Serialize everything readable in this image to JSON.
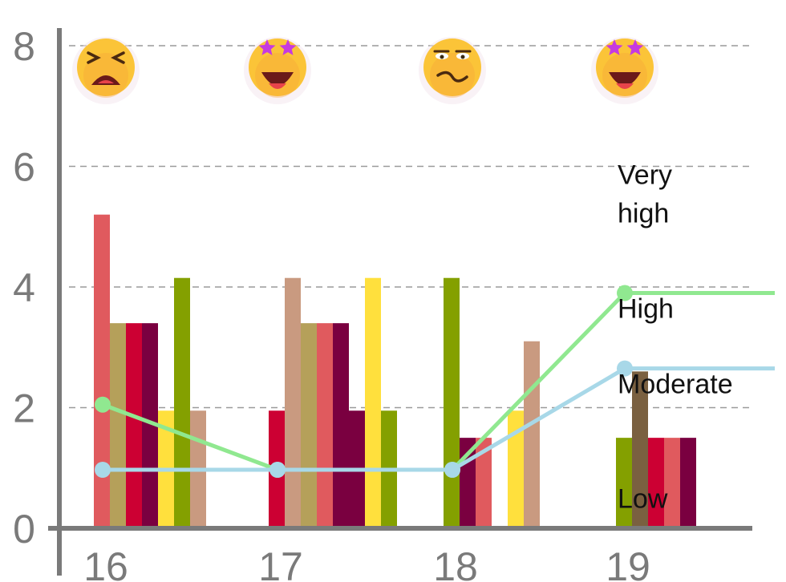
{
  "chart_data": {
    "type": "bar",
    "x_categories": [
      "16",
      "17",
      "18",
      "19"
    ],
    "y_ticks": [
      "0",
      "2",
      "4",
      "6",
      "8"
    ],
    "ylim": [
      0,
      8
    ],
    "grid": "horizontal dashed",
    "bar_groups": [
      {
        "x": "16",
        "bars": [
          {
            "value": 5.2,
            "color": "#e05a5e"
          },
          {
            "value": 3.4,
            "color": "#b5a05a"
          },
          {
            "value": 3.4,
            "color": "#cc0033"
          },
          {
            "value": 3.4,
            "color": "#7a0040"
          },
          {
            "value": 1.95,
            "color": "#ffe03d"
          },
          {
            "value": 4.15,
            "color": "#84a000"
          },
          {
            "value": 1.95,
            "color": "#c99a80"
          }
        ]
      },
      {
        "x": "17",
        "bars": [
          {
            "value": 1.95,
            "color": "#cc0033"
          },
          {
            "value": 4.15,
            "color": "#c99a80"
          },
          {
            "value": 3.4,
            "color": "#b5a05a"
          },
          {
            "value": 3.4,
            "color": "#e05a5e"
          },
          {
            "value": 3.4,
            "color": "#7a0040"
          },
          {
            "value": 1.95,
            "color": "#7a0040"
          },
          {
            "value": 4.15,
            "color": "#ffe03d"
          },
          {
            "value": 1.95,
            "color": "#84a000"
          }
        ]
      },
      {
        "x": "18",
        "bars": [
          {
            "value": 4.15,
            "color": "#84a000"
          },
          {
            "value": 1.5,
            "color": "#7a0040"
          },
          {
            "value": 1.5,
            "color": "#e05a5e"
          },
          {
            "value": 0,
            "color": "#ffffff"
          },
          {
            "value": 1.95,
            "color": "#ffe03d"
          },
          {
            "value": 3.1,
            "color": "#c99a80"
          }
        ]
      },
      {
        "x": "19",
        "bars": [
          {
            "value": 1.5,
            "color": "#84a000"
          },
          {
            "value": 2.6,
            "color": "#7a6040"
          },
          {
            "value": 1.5,
            "color": "#cc0033"
          },
          {
            "value": 1.5,
            "color": "#e05a5e"
          },
          {
            "value": 1.5,
            "color": "#7a0040"
          }
        ]
      }
    ],
    "series": [
      {
        "color": "#90e890",
        "x": [
          "16",
          "17",
          "18",
          "19"
        ],
        "values": [
          2.05,
          0.97,
          0.97,
          3.9
        ],
        "extends_to_edge": true
      },
      {
        "color": "#a8d8e8",
        "x": [
          "16",
          "17",
          "18",
          "19"
        ],
        "values": [
          0.97,
          0.97,
          0.97,
          2.65
        ],
        "extends_to_edge": true
      }
    ],
    "level_labels": [
      {
        "text": "Very high",
        "y": 5.55
      },
      {
        "text": "High",
        "y": 3.65
      },
      {
        "text": "Moderate",
        "y": 2.4
      },
      {
        "text": "Low",
        "y": 0.5
      }
    ],
    "emojis": [
      {
        "x": "16",
        "icon": "tired-face-icon"
      },
      {
        "x": "17",
        "icon": "star-struck-icon"
      },
      {
        "x": "18",
        "icon": "woozy-face-icon"
      },
      {
        "x": "19",
        "icon": "star-struck-icon"
      }
    ]
  }
}
